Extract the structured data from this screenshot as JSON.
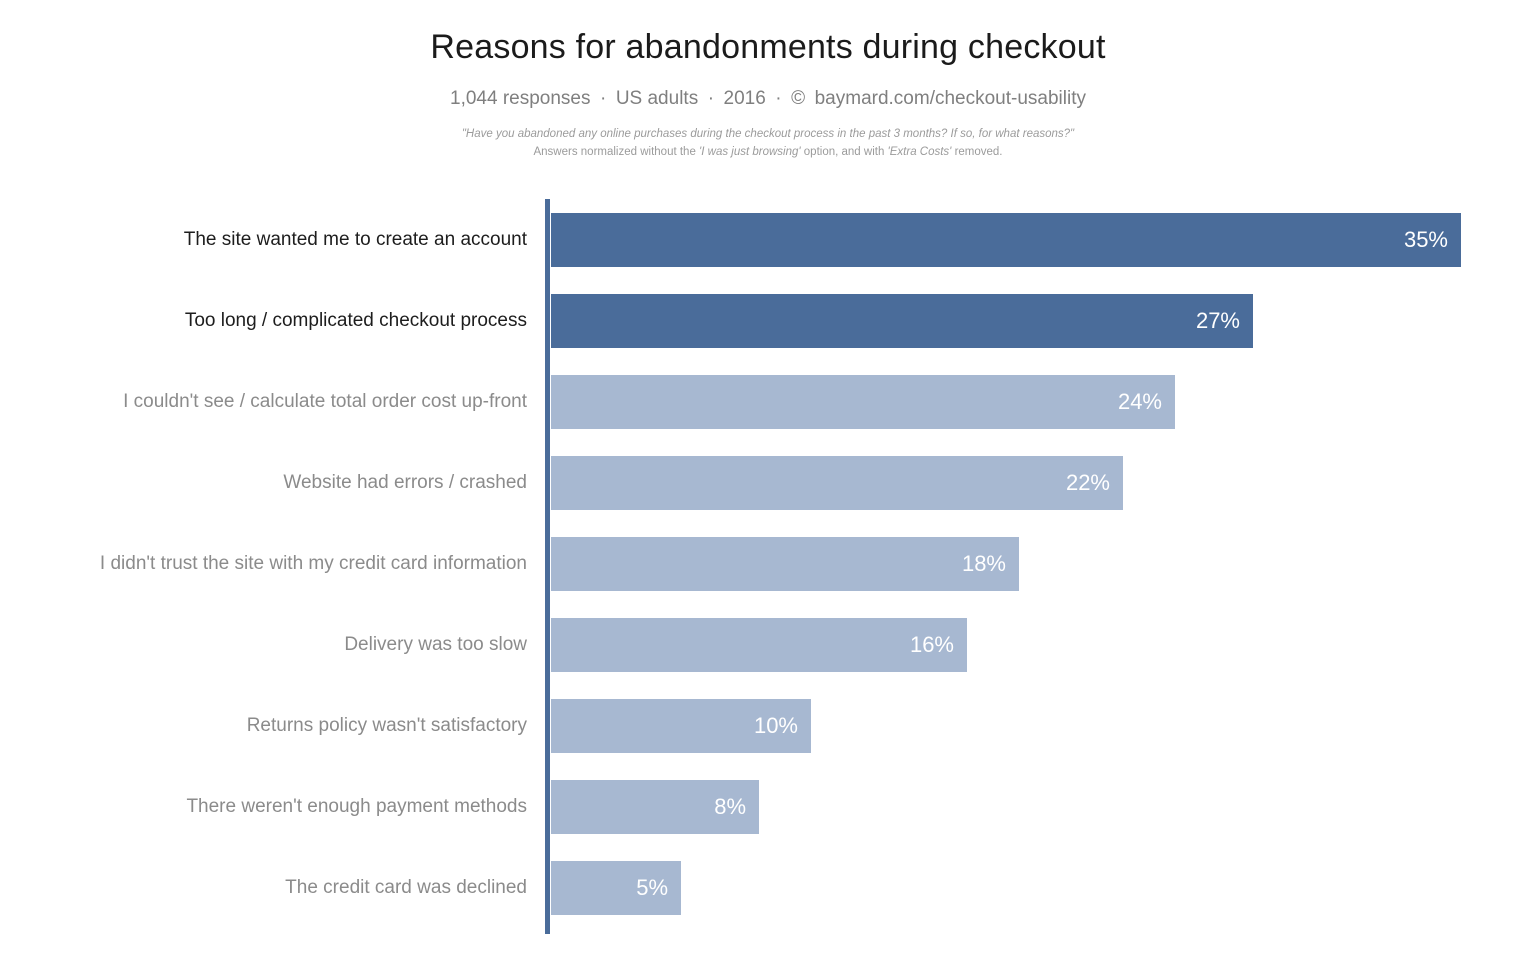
{
  "header": {
    "title": "Reasons for abandonments during checkout",
    "subtitle_parts": [
      "1,044 responses",
      "US adults",
      "2016",
      "© baymard.com/checkout-usability"
    ],
    "note_line1": "\"Have you abandoned any online purchases during the checkout process in the past 3 months? If so, for what reasons?\"",
    "note_line2_segments": [
      {
        "text": "Answers normalized without the ",
        "italic": false
      },
      {
        "text": "'I was just browsing'",
        "italic": true
      },
      {
        "text": " option, and with ",
        "italic": false
      },
      {
        "text": "'Extra Costs'",
        "italic": true
      },
      {
        "text": " removed.",
        "italic": false
      }
    ]
  },
  "chart_data": {
    "type": "bar",
    "orientation": "horizontal",
    "title": "Reasons for abandonments during checkout",
    "categories": [
      "The site wanted me to create an account",
      "Too long / complicated checkout process",
      "I couldn't see / calculate total order cost up-front",
      "Website had errors / crashed",
      "I didn't trust the site with my credit card information",
      "Delivery was too slow",
      "Returns policy wasn't satisfactory",
      "There weren't enough payment methods",
      "The credit card was declined"
    ],
    "values": [
      35,
      27,
      24,
      22,
      18,
      16,
      10,
      8,
      5
    ],
    "value_labels": [
      "35%",
      "27%",
      "24%",
      "22%",
      "18%",
      "16%",
      "10%",
      "8%",
      "5%"
    ],
    "unit": "%",
    "xlim": [
      0,
      35
    ],
    "grid": false,
    "legend": false,
    "value_label_position": "inside-end",
    "emphasized_rows": 2,
    "colors": {
      "bar_emphasis": "#4a6c9a",
      "bar_normal": "#a7b8d1",
      "axis": "#4a6c9a",
      "label_emphasis": "#1d1d1d",
      "label_normal": "#8b8b8b",
      "value_text": "#ffffff"
    }
  }
}
